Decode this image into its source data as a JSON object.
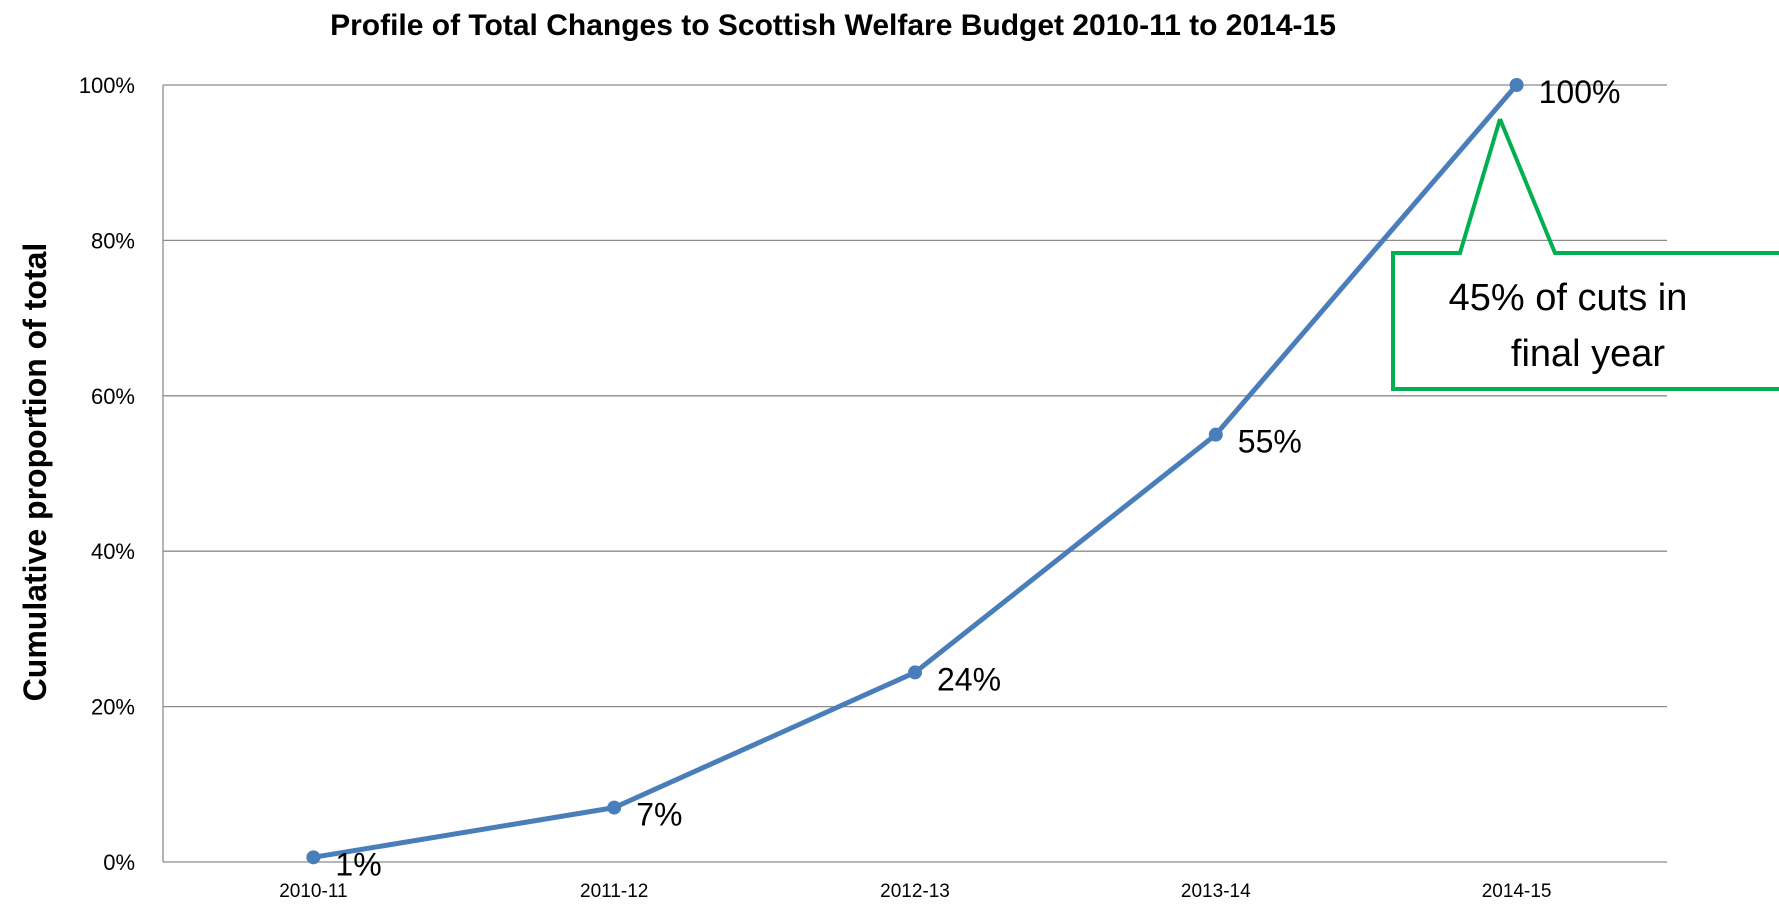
{
  "chart_data": {
    "type": "line",
    "title": "Profile of Total Changes to Scottish Welfare Budget 2010-11 to 2014-15",
    "xlabel": "",
    "ylabel": "Cumulative proportion of total",
    "categories": [
      "2010-11",
      "2011-12",
      "2012-13",
      "2013-14",
      "2014-15"
    ],
    "values": [
      0.6,
      7,
      24.4,
      55,
      100
    ],
    "data_labels": [
      "1%",
      "7%",
      "24%",
      "55%",
      "100%"
    ],
    "ylim": [
      0,
      100
    ],
    "yticks": [
      "0%",
      "20%",
      "40%",
      "60%",
      "80%",
      "100%"
    ],
    "grid": true,
    "legend": "none",
    "series_color": "#4a7ebb",
    "annotation": {
      "lines": [
        "45% of cuts in",
        "final year"
      ],
      "color": "#00b050"
    }
  }
}
